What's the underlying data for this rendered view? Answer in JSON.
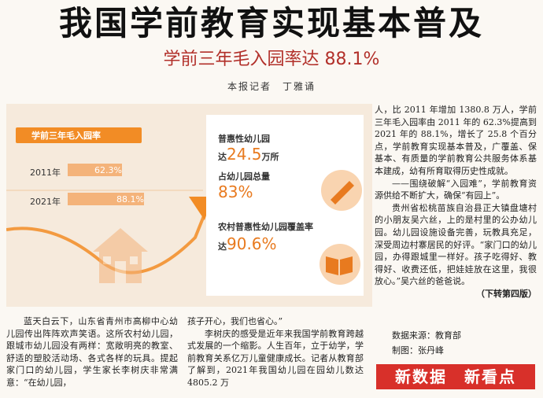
{
  "headline": "我国学前教育实现基本普及",
  "subheadline": "学前三年毛入园率达 88.1%",
  "byline": "本报记者　丁雅诵",
  "infographic": {
    "title": "学前三年毛入园率",
    "rows": [
      {
        "year": "2011年",
        "value": "62.3%",
        "fraction": 0.623
      },
      {
        "year": "2021年",
        "value": "88.1%",
        "fraction": 0.881
      }
    ],
    "stats": [
      {
        "label_pre": "普惠性幼儿园",
        "label_sub": "达",
        "value": "24.5",
        "unit": "万所"
      },
      {
        "label_pre": "占幼儿园总量",
        "label_sub": "",
        "value": "83%",
        "unit": ""
      },
      {
        "label_pre": "农村普惠性幼儿园覆盖率",
        "label_sub": "达",
        "value": "90.6%",
        "unit": ""
      }
    ]
  },
  "body": {
    "col_left": "蓝天白云下，山东省青州市高柳中心幼儿园传出阵阵欢声笑语。这所农村幼儿园，跟城市幼儿园没有两样：宽敞明亮的教室、舒适的塑胶活动场、各式各样的玩具。提起家门口的幼儿园，学生家长李树庆非常满意：“在幼儿园，",
    "col_mid_1": "孩子开心，我们也省心。”",
    "col_mid_2": "李树庆的感受是近年来我国学前教育跨越式发展的一个缩影。人生百年，立于幼学，学前教育关系亿万儿童健康成长。记者从教育部了解到，2021年我国幼儿园在园幼儿数达 4805.2 万",
    "col_right_1": "人，比 2011 年增加 1380.8 万人，学前三年毛入园率由 2011 年的 62.3%提高到 2021 年的 88.1%，增长了 25.8 个百分点，学前教育实现基本普及，广覆盖、保基本、有质量的学前教育公共服务体系基本建成，幼有所育取得历史性成就。",
    "col_right_2": "——围绕破解“入园难”，学前教育资源供给不断扩大，确保“有园上”。",
    "col_right_3": "贵州省松桃苗族自治县正大镇盘塘村的小朋友吴六丝，上的是村里的公办幼儿园。幼儿园设施设备完善，玩教具充足，深受周边村寨居民的好评。“家门口的幼儿园，办得跟城里一样好。孩子吃得好、教得好、收费还低，把娃娃放在这里，我很放心。”吴六丝的爸爸说。",
    "continued": "（下转第四版）"
  },
  "sources": {
    "data_source": "数据来源：教育部",
    "design": "制图：张丹峰"
  },
  "banner": "新数据　新看点"
}
